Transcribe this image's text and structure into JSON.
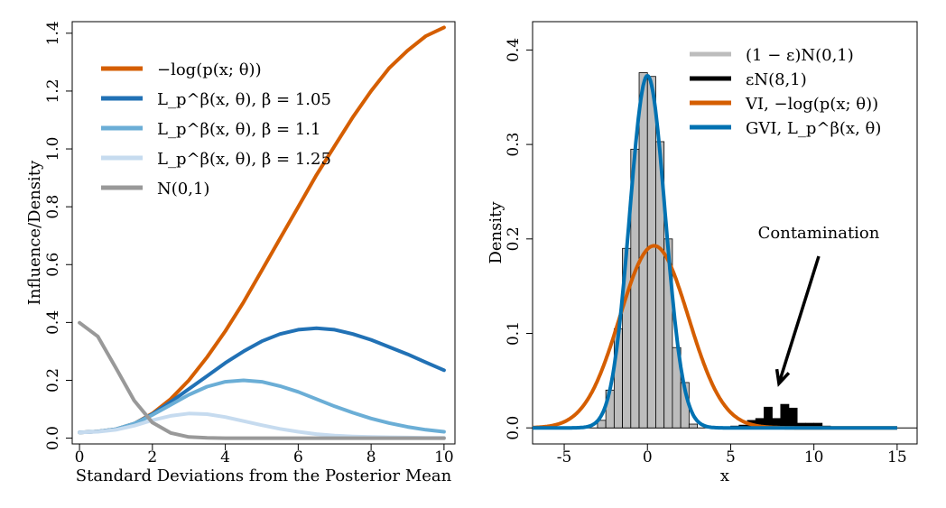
{
  "chart_data": [
    {
      "type": "line",
      "title": "",
      "xlabel": "Standard Deviations from the Posterior Mean",
      "ylabel": "Influence/Density",
      "xlim": [
        -0.2,
        10.3
      ],
      "ylim": [
        -0.02,
        1.44
      ],
      "xticks": [
        0,
        2,
        4,
        6,
        8,
        10
      ],
      "yticks": [
        0.0,
        0.2,
        0.4,
        0.6,
        0.8,
        1.0,
        1.2,
        1.4
      ],
      "ytick_labels": [
        "0.0",
        "0.2",
        "0.4",
        "0.6",
        "0.8",
        "1.0",
        "1.2",
        "1.4"
      ],
      "legend_position": "top-left",
      "x": [
        0,
        0.5,
        1,
        1.5,
        2,
        2.5,
        3,
        3.5,
        4,
        4.5,
        5,
        5.5,
        6,
        6.5,
        7,
        7.5,
        8,
        8.5,
        9,
        9.5,
        10
      ],
      "series": [
        {
          "name": "−log(p(x; θ))",
          "color": "#D55E00",
          "values": [
            0.02,
            0.023,
            0.031,
            0.05,
            0.085,
            0.135,
            0.2,
            0.28,
            0.37,
            0.47,
            0.58,
            0.69,
            0.8,
            0.91,
            1.01,
            1.11,
            1.2,
            1.28,
            1.34,
            1.39,
            1.42
          ]
        },
        {
          "name": "L_p^β(x, θ), β = 1.05",
          "color": "#2171B5",
          "values": [
            0.02,
            0.023,
            0.031,
            0.05,
            0.083,
            0.125,
            0.17,
            0.215,
            0.26,
            0.3,
            0.335,
            0.36,
            0.375,
            0.38,
            0.375,
            0.36,
            0.34,
            0.315,
            0.29,
            0.262,
            0.235
          ]
        },
        {
          "name": "L_p^β(x, θ), β = 1.1",
          "color": "#6BAED6",
          "values": [
            0.02,
            0.023,
            0.031,
            0.05,
            0.08,
            0.115,
            0.15,
            0.178,
            0.195,
            0.2,
            0.195,
            0.18,
            0.16,
            0.135,
            0.11,
            0.088,
            0.068,
            0.052,
            0.039,
            0.029,
            0.022
          ]
        },
        {
          "name": "L_p^β(x, θ), β = 1.25",
          "color": "#C6DBEF",
          "values": [
            0.02,
            0.022,
            0.029,
            0.043,
            0.062,
            0.077,
            0.085,
            0.083,
            0.073,
            0.059,
            0.045,
            0.032,
            0.022,
            0.014,
            0.009,
            0.006,
            0.004,
            0.003,
            0.002,
            0.001,
            0.001
          ]
        },
        {
          "name": "N(0,1)",
          "color": "#999999",
          "values": [
            0.399,
            0.352,
            0.242,
            0.13,
            0.054,
            0.018,
            0.004,
            0.001,
            0.0001,
            0,
            0,
            0,
            0,
            0,
            0,
            0,
            0,
            0,
            0,
            0,
            0
          ]
        }
      ]
    },
    {
      "type": "histogram",
      "title": "",
      "xlabel": "x",
      "ylabel": "Density",
      "xlim": [
        -6.9,
        16.2
      ],
      "ylim": [
        -0.017,
        0.43
      ],
      "xticks": [
        -5,
        0,
        5,
        10,
        15
      ],
      "yticks": [
        0.0,
        0.1,
        0.2,
        0.3,
        0.4
      ],
      "ytick_labels": [
        "0.0",
        "0.1",
        "0.2",
        "0.3",
        "0.4"
      ],
      "legend_position": "top-right",
      "bin_width": 0.5,
      "bins_main": {
        "name": "(1 − ε)N(0,1)",
        "color": "#BDBDBD",
        "x_start": [
          -3,
          -2.5,
          -2,
          -1.5,
          -1,
          -0.5,
          0,
          0.5,
          1,
          1.5,
          2,
          2.5
        ],
        "density": [
          0.008,
          0.04,
          0.105,
          0.19,
          0.295,
          0.376,
          0.372,
          0.303,
          0.2,
          0.085,
          0.048,
          0.004
        ]
      },
      "bins_contamination": {
        "name": "εN(8,1)",
        "color": "#000000",
        "x_start": [
          5,
          5.5,
          6,
          6.5,
          7,
          7.5,
          8,
          8.5,
          9,
          9.5,
          10,
          10.5
        ],
        "density": [
          0.002,
          0.003,
          0.008,
          0.01,
          0.022,
          0.01,
          0.025,
          0.021,
          0.005,
          0.005,
          0.005,
          0.002
        ]
      },
      "curves": [
        {
          "name": "VI, −log(p(x; θ))",
          "color": "#D55E00",
          "type": "normal",
          "mean": 0.4,
          "sd": 2.07
        },
        {
          "name": "GVI, L_p^β(x, θ)",
          "color": "#0072B2",
          "type": "normal",
          "mean": 0,
          "sd": 1.07
        }
      ],
      "annotation": {
        "text": "Contamination",
        "arrow_to": [
          7.9,
          0.047
        ]
      }
    }
  ],
  "colors": {
    "axis": "#000000",
    "background": "#ffffff"
  }
}
